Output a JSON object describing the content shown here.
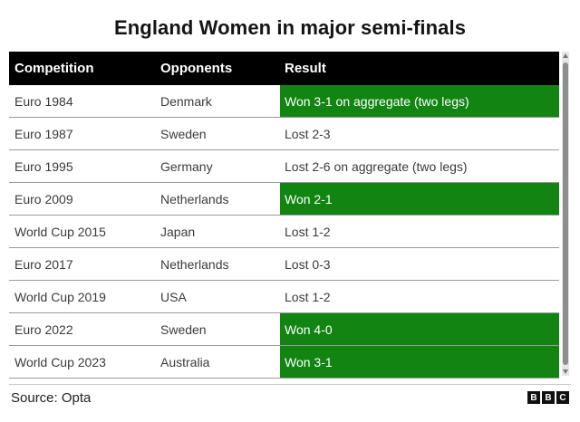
{
  "title": "England Women in major semi-finals",
  "table": {
    "headers": [
      "Competition",
      "Opponents",
      "Result"
    ],
    "rows": [
      {
        "competition": "Euro 1984",
        "opponents": "Denmark",
        "result": "Won 3-1 on aggregate (two legs)",
        "win": true
      },
      {
        "competition": "Euro 1987",
        "opponents": "Sweden",
        "result": "Lost 2-3",
        "win": false
      },
      {
        "competition": "Euro 1995",
        "opponents": "Germany",
        "result": "Lost 2-6 on aggregate (two legs)",
        "win": false
      },
      {
        "competition": "Euro 2009",
        "opponents": "Netherlands",
        "result": "Won 2-1",
        "win": true
      },
      {
        "competition": "World Cup 2015",
        "opponents": "Japan",
        "result": "Lost 1-2",
        "win": false
      },
      {
        "competition": "Euro 2017",
        "opponents": "Netherlands",
        "result": "Lost 0-3",
        "win": false
      },
      {
        "competition": "World Cup 2019",
        "opponents": "USA",
        "result": "Lost 1-2",
        "win": false
      },
      {
        "competition": "Euro 2022",
        "opponents": "Sweden",
        "result": "Won 4-0",
        "win": true
      },
      {
        "competition": "World Cup 2023",
        "opponents": "Australia",
        "result": "Won 3-1",
        "win": true
      }
    ]
  },
  "colors": {
    "win_highlight": "#128412",
    "header_bg": "#000000"
  },
  "footer": {
    "source": "Source: Opta",
    "logo_letters": [
      "B",
      "B",
      "C"
    ]
  }
}
